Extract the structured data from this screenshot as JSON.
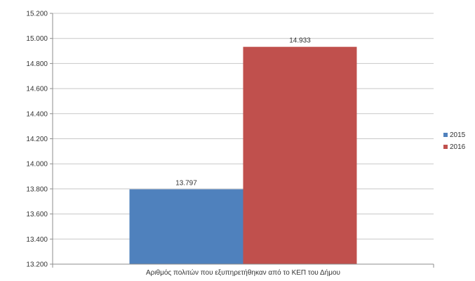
{
  "chart_data": {
    "type": "bar",
    "categories": [
      "Αριθμός πολιτών που εξυπηρετήθηκαν από το ΚΕΠ του Δήμου"
    ],
    "series": [
      {
        "name": "2015",
        "values": [
          13797
        ],
        "label": "13.797",
        "color": "#4F81BD"
      },
      {
        "name": "2016",
        "values": [
          14933
        ],
        "label": "14.933",
        "color": "#C0504D"
      }
    ],
    "ylim": [
      13200,
      15200
    ],
    "yticks": [
      {
        "value": 13200,
        "label": "13.200"
      },
      {
        "value": 13400,
        "label": "13.400"
      },
      {
        "value": 13600,
        "label": "13.600"
      },
      {
        "value": 13800,
        "label": "13.800"
      },
      {
        "value": 14000,
        "label": "14.000"
      },
      {
        "value": 14200,
        "label": "14.200"
      },
      {
        "value": 14400,
        "label": "14.400"
      },
      {
        "value": 14600,
        "label": "14.600"
      },
      {
        "value": 14800,
        "label": "14.800"
      },
      {
        "value": 15000,
        "label": "15.000"
      },
      {
        "value": 15200,
        "label": "15.200"
      }
    ],
    "grid": true,
    "legend": "right",
    "title": "",
    "xlabel": "",
    "ylabel": ""
  }
}
